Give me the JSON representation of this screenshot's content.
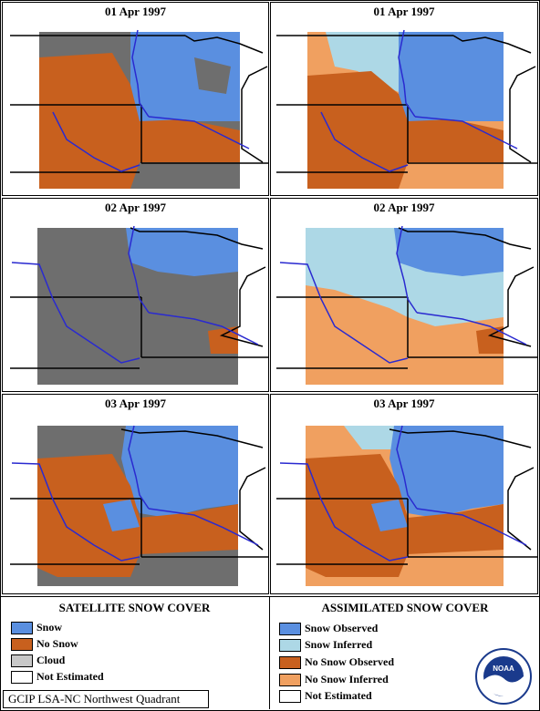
{
  "colors": {
    "snow": "#5a8fe0",
    "no_snow": "#c8601e",
    "cloud": "#6e6e6e",
    "not_estimated": "#ffffff",
    "snow_observed": "#5a8fe0",
    "snow_inferred": "#add8e6",
    "no_snow_observed": "#c8601e",
    "no_snow_inferred": "#f0a060",
    "river": "#2a2ad0",
    "border": "#000000"
  },
  "panels": [
    {
      "title": "01 Apr 1997",
      "kind": "satellite",
      "row": 0
    },
    {
      "title": "01 Apr 1997",
      "kind": "assimilated",
      "row": 0
    },
    {
      "title": "02 Apr 1997",
      "kind": "satellite",
      "row": 1
    },
    {
      "title": "02 Apr 1997",
      "kind": "assimilated",
      "row": 1
    },
    {
      "title": "03 Apr 1997",
      "kind": "satellite",
      "row": 2
    },
    {
      "title": "03 Apr 1997",
      "kind": "assimilated",
      "row": 2
    }
  ],
  "legend_left": {
    "title": "SATELLITE SNOW COVER",
    "items": [
      {
        "label": "Snow",
        "color": "#5a8fe0"
      },
      {
        "label": "No Snow",
        "color": "#c8601e"
      },
      {
        "label": "Cloud",
        "color": "#c8c8c8"
      },
      {
        "label": "Not Estimated",
        "color": "#ffffff"
      }
    ]
  },
  "legend_right": {
    "title": "ASSIMILATED SNOW COVER",
    "items": [
      {
        "label": "Snow Observed",
        "color": "#5a8fe0"
      },
      {
        "label": "Snow Inferred",
        "color": "#add8e6"
      },
      {
        "label": "No Snow Observed",
        "color": "#c8601e"
      },
      {
        "label": "No Snow Inferred",
        "color": "#f0a060"
      },
      {
        "label": "Not Estimated",
        "color": "#ffffff"
      }
    ]
  },
  "footer": "GCIP LSA-NC Northwest Quadrant",
  "logo": {
    "text": "NOAA",
    "icon": "noaa-logo-icon"
  }
}
